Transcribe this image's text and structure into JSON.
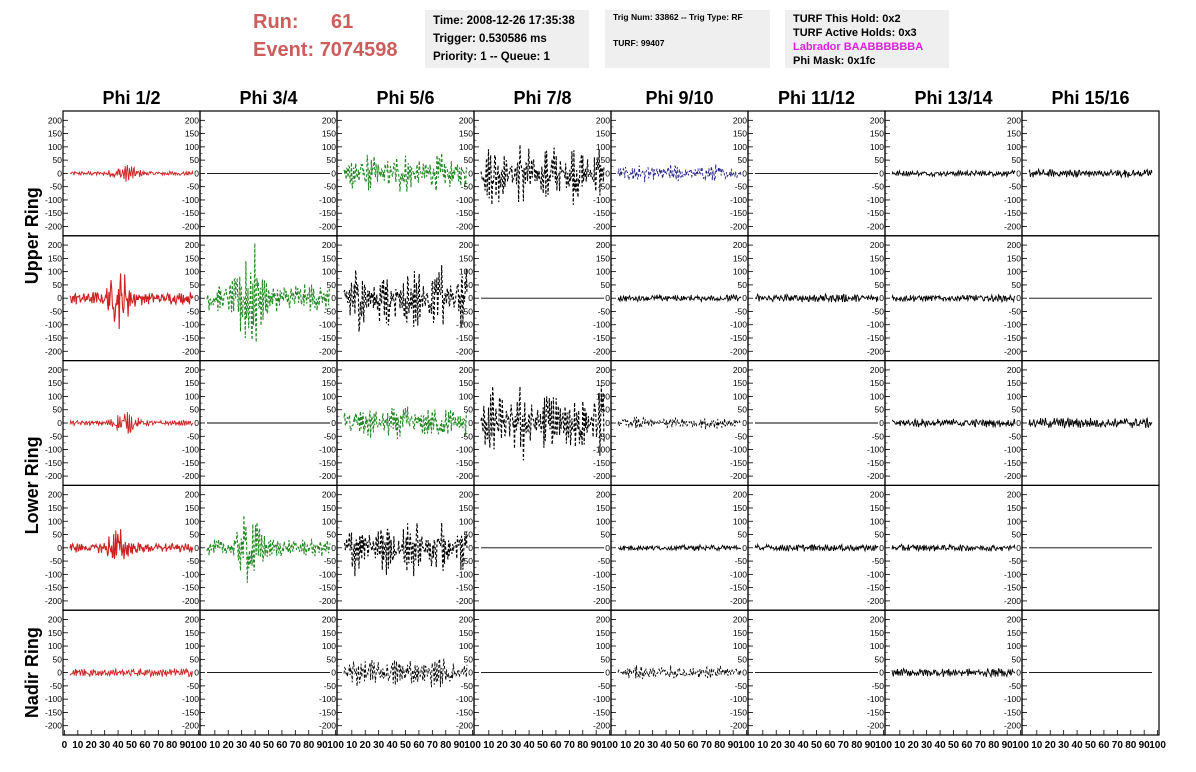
{
  "header": {
    "run_label": "Run:",
    "run_value": "61",
    "event_label": "Event:",
    "event_value": "7074598",
    "time_line": "Time: 2008-12-26 17:35:38",
    "trigger_line": "Trigger: 0.530586 ms",
    "priority_line": "Priority: 1 -- Queue: 1",
    "trig_line": "Trig Num: 33862 -- Trig Type: RF",
    "turf_line": "TURF: 99407",
    "turf_hold_line": "TURF This Hold: 0x2",
    "turf_active_line": "TURF Active Holds: 0x3",
    "labrador_line": "Labrador BAABBBBBBA",
    "phi_mask_line": "Phi Mask: 0x1fc"
  },
  "colors": {
    "header_accent": "#cd5c5c",
    "red_trace": "#cc2222",
    "green_trace": "#228822",
    "blue_trace": "#222288",
    "black_trace": "#000000",
    "labrador": "#e020e0",
    "info_box_bg": "#efefef"
  },
  "chart_data": {
    "type": "line",
    "columns": [
      "Phi 1/2",
      "Phi 3/4",
      "Phi 5/6",
      "Phi 7/8",
      "Phi 9/10",
      "Phi 11/12",
      "Phi 13/14",
      "Phi 15/16"
    ],
    "row_labels": [
      "Upper Ring",
      "Lower Ring",
      "Nadir Ring"
    ],
    "panel_rows": 5,
    "ylim": [
      -220,
      220
    ],
    "xlim": [
      0,
      100
    ],
    "y_ticks": [
      "-200",
      "-150",
      "-100",
      "-50",
      "0",
      "50",
      "100",
      "150",
      "200"
    ],
    "x_ticks": [
      "0",
      "10",
      "20",
      "30",
      "40",
      "50",
      "60",
      "70",
      "80",
      "90",
      "100"
    ],
    "panels": [
      [
        {
          "color": "red",
          "dashed": false,
          "amp": 35,
          "env": "burst",
          "center": 45
        },
        {
          "color": "black",
          "dashed": false,
          "amp": 0,
          "env": "flat"
        },
        {
          "color": "green",
          "dashed": true,
          "amp": 75,
          "env": "broad"
        },
        {
          "color": "black",
          "dashed": true,
          "amp": 125,
          "env": "lobes"
        },
        {
          "color": "blue",
          "dashed": true,
          "amp": 35,
          "env": "broad"
        },
        {
          "color": "black",
          "dashed": false,
          "amp": 0,
          "env": "flat"
        },
        {
          "color": "black",
          "dashed": false,
          "amp": 12,
          "env": "flat"
        },
        {
          "color": "black",
          "dashed": false,
          "amp": 18,
          "env": "flat"
        }
      ],
      [
        {
          "color": "red",
          "dashed": false,
          "amp": 95,
          "env": "burst",
          "center": 40
        },
        {
          "color": "green",
          "dashed": true,
          "amp": 210,
          "env": "burst",
          "center": 35
        },
        {
          "color": "black",
          "dashed": true,
          "amp": 130,
          "env": "lobes"
        },
        {
          "color": "black",
          "dashed": false,
          "amp": 0,
          "env": "flat"
        },
        {
          "color": "black",
          "dashed": false,
          "amp": 15,
          "env": "flat"
        },
        {
          "color": "black",
          "dashed": false,
          "amp": 18,
          "env": "flat"
        },
        {
          "color": "black",
          "dashed": false,
          "amp": 15,
          "env": "flat"
        },
        {
          "color": "black",
          "dashed": false,
          "amp": 0,
          "env": "flat"
        }
      ],
      [
        {
          "color": "red",
          "dashed": false,
          "amp": 40,
          "env": "burst",
          "center": 45
        },
        {
          "color": "black",
          "dashed": false,
          "amp": 0,
          "env": "flat"
        },
        {
          "color": "green",
          "dashed": true,
          "amp": 70,
          "env": "broad"
        },
        {
          "color": "black",
          "dashed": true,
          "amp": 150,
          "env": "lobes"
        },
        {
          "color": "black",
          "dashed": true,
          "amp": 25,
          "env": "broad"
        },
        {
          "color": "black",
          "dashed": false,
          "amp": 0,
          "env": "flat"
        },
        {
          "color": "black",
          "dashed": false,
          "amp": 18,
          "env": "flat"
        },
        {
          "color": "black",
          "dashed": false,
          "amp": 22,
          "env": "flat"
        }
      ],
      [
        {
          "color": "red",
          "dashed": false,
          "amp": 70,
          "env": "burst",
          "center": 40
        },
        {
          "color": "green",
          "dashed": true,
          "amp": 130,
          "env": "burst",
          "center": 35
        },
        {
          "color": "black",
          "dashed": true,
          "amp": 115,
          "env": "lobes"
        },
        {
          "color": "black",
          "dashed": false,
          "amp": 0,
          "env": "flat"
        },
        {
          "color": "black",
          "dashed": false,
          "amp": 12,
          "env": "flat"
        },
        {
          "color": "black",
          "dashed": false,
          "amp": 15,
          "env": "flat"
        },
        {
          "color": "black",
          "dashed": false,
          "amp": 15,
          "env": "flat"
        },
        {
          "color": "black",
          "dashed": false,
          "amp": 0,
          "env": "flat"
        }
      ],
      [
        {
          "color": "red",
          "dashed": false,
          "amp": 18,
          "env": "flat"
        },
        {
          "color": "black",
          "dashed": false,
          "amp": 0,
          "env": "flat"
        },
        {
          "color": "black",
          "dashed": true,
          "amp": 60,
          "env": "broad"
        },
        {
          "color": "black",
          "dashed": false,
          "amp": 0,
          "env": "flat"
        },
        {
          "color": "black",
          "dashed": true,
          "amp": 28,
          "env": "broad"
        },
        {
          "color": "black",
          "dashed": false,
          "amp": 0,
          "env": "flat"
        },
        {
          "color": "black",
          "dashed": false,
          "amp": 18,
          "env": "flat"
        },
        {
          "color": "black",
          "dashed": false,
          "amp": 0,
          "env": "flat"
        }
      ]
    ]
  }
}
